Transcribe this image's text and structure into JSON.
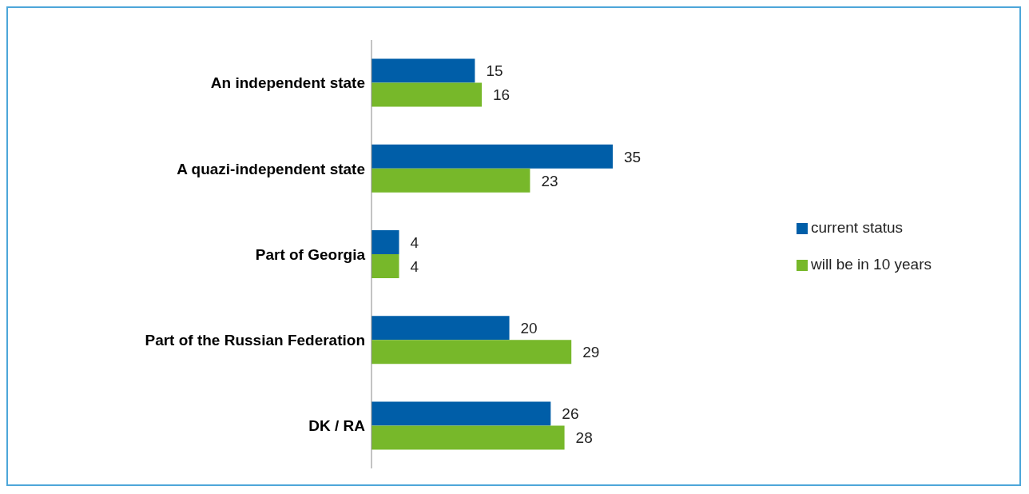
{
  "chart_data": {
    "type": "bar",
    "orientation": "horizontal",
    "categories": [
      "An independent state",
      "A quazi-independent state",
      "Part of Georgia",
      "Part of the Russian Federation",
      "DK / RA"
    ],
    "series": [
      {
        "name": "current status",
        "color": "#005ea8",
        "values": [
          15,
          35,
          4,
          20,
          26
        ]
      },
      {
        "name": "will be in 10 years",
        "color": "#77b82a",
        "values": [
          16,
          23,
          4,
          29,
          28
        ]
      }
    ],
    "data_labels": true,
    "legend": "right"
  }
}
